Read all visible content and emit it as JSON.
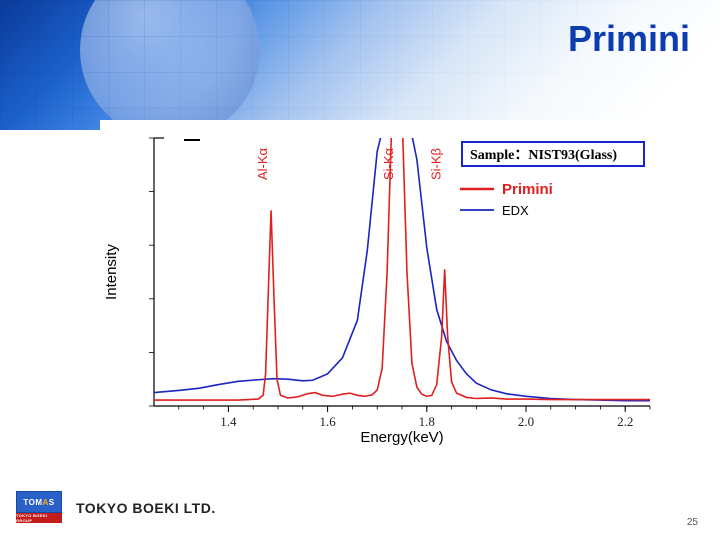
{
  "title": "Primini",
  "footer": {
    "company": "TOKYO BOEKI LTD.",
    "logo_text": "TOM",
    "logo_a": "A",
    "logo_s": "S",
    "logo_sub": "TOKYO BOEKI GROUP",
    "page": "25"
  },
  "chart": {
    "type": "line",
    "xlabel": "Energy(keV)",
    "ylabel": "Intensity",
    "xlim": [
      1.25,
      2.25
    ],
    "ylim": [
      0,
      10
    ],
    "xticks": [
      1.4,
      1.6,
      1.8,
      2.0,
      2.2
    ],
    "sample_label": "Sample：NIST93(Glass)",
    "background_color": "#ffffff",
    "axis_color": "#000000",
    "tick_color": "#222222",
    "label_fontsize": 15,
    "tick_fontsize": 13,
    "peak_label_fontsize": 13,
    "peak_label_color": "#e02020",
    "line_width_primini": 1.6,
    "line_width_edx": 1.6,
    "colors": {
      "primini": "#e02020",
      "edx": "#1a24c0"
    },
    "legend": {
      "primini": "Primini",
      "edx": "EDX"
    },
    "peak_labels": [
      {
        "text": "Al-Kα",
        "x": 1.486,
        "mode": "v"
      },
      {
        "text": "Si-Kα",
        "x": 1.74,
        "mode": "v"
      },
      {
        "text": "Si-Kβ",
        "x": 1.836,
        "mode": "v"
      }
    ],
    "series": {
      "edx": [
        [
          1.25,
          0.5
        ],
        [
          1.3,
          0.58
        ],
        [
          1.34,
          0.66
        ],
        [
          1.38,
          0.8
        ],
        [
          1.42,
          0.92
        ],
        [
          1.46,
          0.98
        ],
        [
          1.49,
          1.02
        ],
        [
          1.52,
          1.0
        ],
        [
          1.55,
          0.94
        ],
        [
          1.57,
          0.96
        ],
        [
          1.6,
          1.2
        ],
        [
          1.63,
          1.8
        ],
        [
          1.66,
          3.2
        ],
        [
          1.68,
          5.8
        ],
        [
          1.7,
          9.5
        ],
        [
          1.72,
          11.0
        ],
        [
          1.74,
          11.0
        ],
        [
          1.76,
          11.0
        ],
        [
          1.78,
          9.2
        ],
        [
          1.8,
          5.9
        ],
        [
          1.82,
          3.6
        ],
        [
          1.84,
          2.4
        ],
        [
          1.86,
          1.7
        ],
        [
          1.88,
          1.2
        ],
        [
          1.9,
          0.85
        ],
        [
          1.93,
          0.6
        ],
        [
          1.96,
          0.46
        ],
        [
          2.0,
          0.36
        ],
        [
          2.05,
          0.28
        ],
        [
          2.1,
          0.24
        ],
        [
          2.15,
          0.22
        ],
        [
          2.2,
          0.2
        ],
        [
          2.25,
          0.2
        ]
      ],
      "primini": [
        [
          1.25,
          0.22
        ],
        [
          1.3,
          0.22
        ],
        [
          1.35,
          0.22
        ],
        [
          1.38,
          0.22
        ],
        [
          1.4,
          0.22
        ],
        [
          1.42,
          0.22
        ],
        [
          1.44,
          0.24
        ],
        [
          1.46,
          0.26
        ],
        [
          1.47,
          0.4
        ],
        [
          1.475,
          1.2
        ],
        [
          1.48,
          4.0
        ],
        [
          1.486,
          7.3
        ],
        [
          1.492,
          4.0
        ],
        [
          1.498,
          1.0
        ],
        [
          1.505,
          0.4
        ],
        [
          1.52,
          0.3
        ],
        [
          1.54,
          0.34
        ],
        [
          1.56,
          0.46
        ],
        [
          1.575,
          0.5
        ],
        [
          1.59,
          0.4
        ],
        [
          1.61,
          0.36
        ],
        [
          1.63,
          0.44
        ],
        [
          1.645,
          0.48
        ],
        [
          1.66,
          0.4
        ],
        [
          1.675,
          0.36
        ],
        [
          1.69,
          0.42
        ],
        [
          1.7,
          0.6
        ],
        [
          1.71,
          1.4
        ],
        [
          1.72,
          5.0
        ],
        [
          1.73,
          11.0
        ],
        [
          1.74,
          11.0
        ],
        [
          1.75,
          11.0
        ],
        [
          1.76,
          5.0
        ],
        [
          1.77,
          1.6
        ],
        [
          1.78,
          0.7
        ],
        [
          1.79,
          0.44
        ],
        [
          1.8,
          0.36
        ],
        [
          1.81,
          0.4
        ],
        [
          1.82,
          0.8
        ],
        [
          1.83,
          2.6
        ],
        [
          1.836,
          5.1
        ],
        [
          1.842,
          2.6
        ],
        [
          1.85,
          0.9
        ],
        [
          1.86,
          0.48
        ],
        [
          1.88,
          0.32
        ],
        [
          1.9,
          0.28
        ],
        [
          1.93,
          0.3
        ],
        [
          1.96,
          0.26
        ],
        [
          2.0,
          0.26
        ],
        [
          2.05,
          0.24
        ],
        [
          2.1,
          0.24
        ],
        [
          2.15,
          0.24
        ],
        [
          2.2,
          0.24
        ],
        [
          2.25,
          0.24
        ]
      ]
    }
  }
}
